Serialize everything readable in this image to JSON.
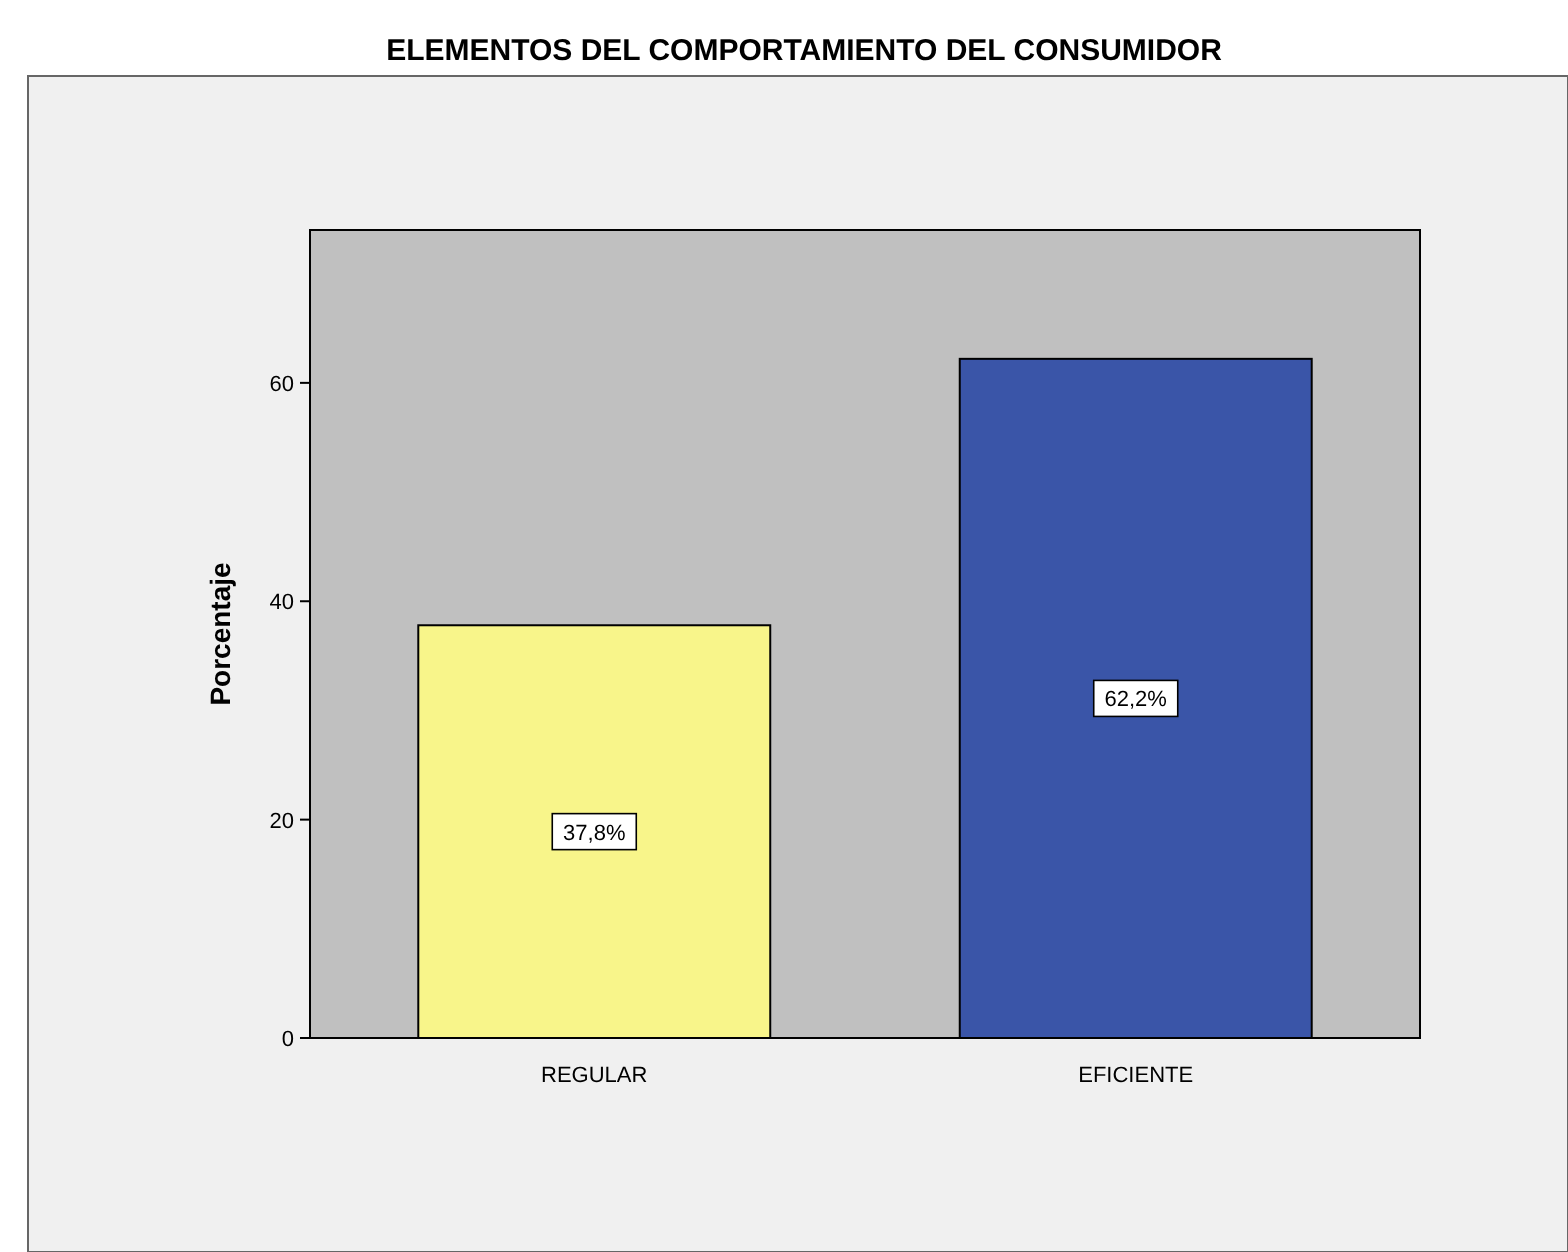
{
  "chart_data": {
    "type": "bar",
    "title": "ELEMENTOS DEL COMPORTAMIENTO DEL CONSUMIDOR",
    "ylabel": "Porcentaje",
    "categories": [
      "REGULAR",
      "EFICIENTE"
    ],
    "values": [
      37.8,
      62.2
    ],
    "colors": [
      "#f8f58a",
      "#3a55a8"
    ],
    "value_labels": [
      "37,8%",
      "62,2%"
    ],
    "ylim": [
      0,
      74
    ],
    "yticks": [
      0,
      20,
      40,
      60
    ],
    "grid": false
  }
}
